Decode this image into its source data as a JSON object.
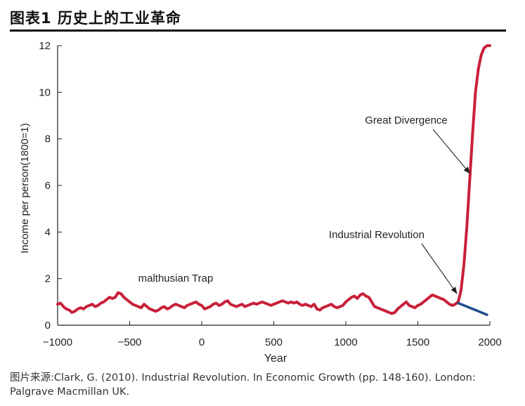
{
  "figure": {
    "title": "图表1 历史上的工业革命",
    "source": "图片来源:Clark, G. (2010). Industrial Revolution. In Economic Growth (pp. 148-160). London: Palgrave Macmillan UK."
  },
  "colors": {
    "malthusian": "#c8203a",
    "industrial": "#1f4d8c",
    "axis": "#222222"
  },
  "chart_data": {
    "type": "line",
    "xlabel": "Year",
    "ylabel": "Income per person(1800=1)",
    "xlim": [
      -1000,
      2000
    ],
    "ylim": [
      0,
      12
    ],
    "xticks": [
      -1000,
      -500,
      0,
      500,
      1000,
      1500,
      2000
    ],
    "xtick_labels": [
      "−1000",
      "−500",
      "0",
      "500",
      "1000",
      "1500",
      "2000"
    ],
    "yticks": [
      0,
      2,
      4,
      6,
      8,
      10,
      12
    ],
    "grid": false,
    "legend": "none",
    "series": [
      {
        "color": "#c8203a",
        "x": [
          -1000,
          -980,
          -960,
          -940,
          -920,
          -900,
          -880,
          -860,
          -840,
          -820,
          -800,
          -780,
          -760,
          -740,
          -720,
          -700,
          -680,
          -660,
          -640,
          -620,
          -600,
          -580,
          -560,
          -540,
          -520,
          -500,
          -480,
          -460,
          -440,
          -420,
          -400,
          -380,
          -360,
          -340,
          -320,
          -300,
          -280,
          -260,
          -240,
          -220,
          -200,
          -180,
          -160,
          -140,
          -120,
          -100,
          -80,
          -60,
          -40,
          -20,
          0,
          20,
          40,
          60,
          80,
          100,
          120,
          140,
          160,
          180,
          200,
          220,
          240,
          260,
          280,
          300,
          320,
          340,
          360,
          380,
          400,
          420,
          440,
          460,
          480,
          500,
          520,
          540,
          560,
          580,
          600,
          620,
          640,
          660,
          680,
          700,
          720,
          740,
          760,
          780,
          800,
          820,
          840,
          860,
          880,
          900,
          920,
          940,
          960,
          980,
          1000,
          1020,
          1040,
          1060,
          1080,
          1100,
          1120,
          1140,
          1160,
          1180,
          1200,
          1220,
          1240,
          1260,
          1280,
          1300,
          1320,
          1340,
          1360,
          1380,
          1400,
          1420,
          1440,
          1460,
          1480,
          1500,
          1520,
          1540,
          1560,
          1580,
          1600,
          1620,
          1640,
          1660,
          1680,
          1700,
          1720,
          1740,
          1760,
          1780,
          1800,
          1820,
          1840,
          1860,
          1880,
          1900,
          1920,
          1940,
          1960,
          1980,
          2000
        ],
        "y": [
          0.9,
          0.95,
          0.8,
          0.7,
          0.65,
          0.55,
          0.6,
          0.7,
          0.75,
          0.7,
          0.8,
          0.85,
          0.9,
          0.8,
          0.85,
          0.95,
          1.0,
          1.1,
          1.2,
          1.15,
          1.2,
          1.4,
          1.35,
          1.2,
          1.1,
          1.0,
          0.9,
          0.85,
          0.8,
          0.75,
          0.9,
          0.8,
          0.7,
          0.65,
          0.6,
          0.65,
          0.75,
          0.8,
          0.7,
          0.75,
          0.85,
          0.9,
          0.85,
          0.8,
          0.75,
          0.85,
          0.9,
          0.95,
          1.0,
          0.9,
          0.85,
          0.7,
          0.75,
          0.8,
          0.9,
          0.95,
          0.85,
          0.9,
          1.0,
          1.05,
          0.9,
          0.85,
          0.8,
          0.85,
          0.9,
          0.8,
          0.85,
          0.9,
          0.95,
          0.9,
          0.95,
          1.0,
          0.95,
          0.9,
          0.85,
          0.9,
          0.95,
          1.0,
          1.05,
          1.0,
          0.95,
          1.0,
          0.95,
          1.0,
          0.9,
          0.85,
          0.9,
          0.85,
          0.8,
          0.9,
          0.7,
          0.65,
          0.75,
          0.8,
          0.85,
          0.9,
          0.8,
          0.75,
          0.8,
          0.85,
          1.0,
          1.1,
          1.2,
          1.25,
          1.15,
          1.3,
          1.35,
          1.25,
          1.2,
          1.0,
          0.8,
          0.75,
          0.7,
          0.65,
          0.6,
          0.55,
          0.5,
          0.55,
          0.7,
          0.8,
          0.9,
          1.0,
          0.85,
          0.8,
          0.75,
          0.85,
          0.9,
          1.0,
          1.1,
          1.2,
          1.3,
          1.25,
          1.2,
          1.15,
          1.1,
          1.0,
          0.9,
          0.85,
          0.9,
          1.0,
          1.5,
          2.6,
          4.2,
          6.2,
          8.2,
          10.0,
          11.0,
          11.6,
          11.9,
          12.0,
          12.0
        ]
      },
      {
        "color": "#1f4d8c",
        "x": [
          1780,
          1820,
          1860,
          1900,
          1940,
          1980
        ],
        "y": [
          0.95,
          0.85,
          0.75,
          0.65,
          0.55,
          0.45
        ]
      }
    ],
    "annotations": [
      {
        "text": "malthusian Trap"
      },
      {
        "text": "Industrial Revolution",
        "points_to": [
          1800,
          1.0
        ]
      },
      {
        "text": "Great Divergence",
        "points_to": [
          1880,
          6.4
        ]
      }
    ]
  }
}
